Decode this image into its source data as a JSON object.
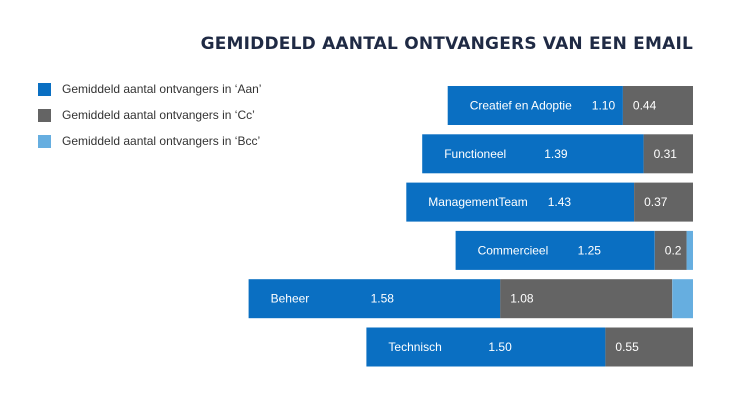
{
  "chart_data": {
    "type": "bar",
    "orientation": "horizontal",
    "stacked": true,
    "alignment": "right",
    "title": "GEMIDDELD AANTAL ONTVANGERS VAN EEN EMAIL",
    "categories": [
      "Creatief en Adoptie",
      "Functioneel",
      "ManagementTeam",
      "Commercieel",
      "Beheer",
      "Technisch"
    ],
    "series": [
      {
        "name": "Gemiddeld aantal ontvangers in ‘Aan’",
        "color": "#0a6fc2",
        "values": [
          1.1,
          1.39,
          1.43,
          1.25,
          1.58,
          1.5
        ],
        "labels": [
          "1.10",
          "1.39",
          "1.43",
          "1.25",
          "1.58",
          "1.50"
        ]
      },
      {
        "name": "Gemiddeld aantal ontvangers in ‘Cc’",
        "color": "#646464",
        "values": [
          0.44,
          0.31,
          0.37,
          0.2,
          1.08,
          0.55
        ],
        "labels": [
          "0.44",
          "0.31",
          "0.37",
          "0.2",
          "1.08",
          "0.55"
        ]
      },
      {
        "name": "Gemiddeld aantal ontvangers in ‘Bcc’",
        "color": "#66aee0",
        "values": [
          0.0,
          0.0,
          0.0,
          0.04,
          0.13,
          0.0
        ],
        "labels": [
          "",
          "",
          "",
          "",
          "",
          ""
        ]
      }
    ],
    "legend_position": "top-left",
    "grid": false
  }
}
